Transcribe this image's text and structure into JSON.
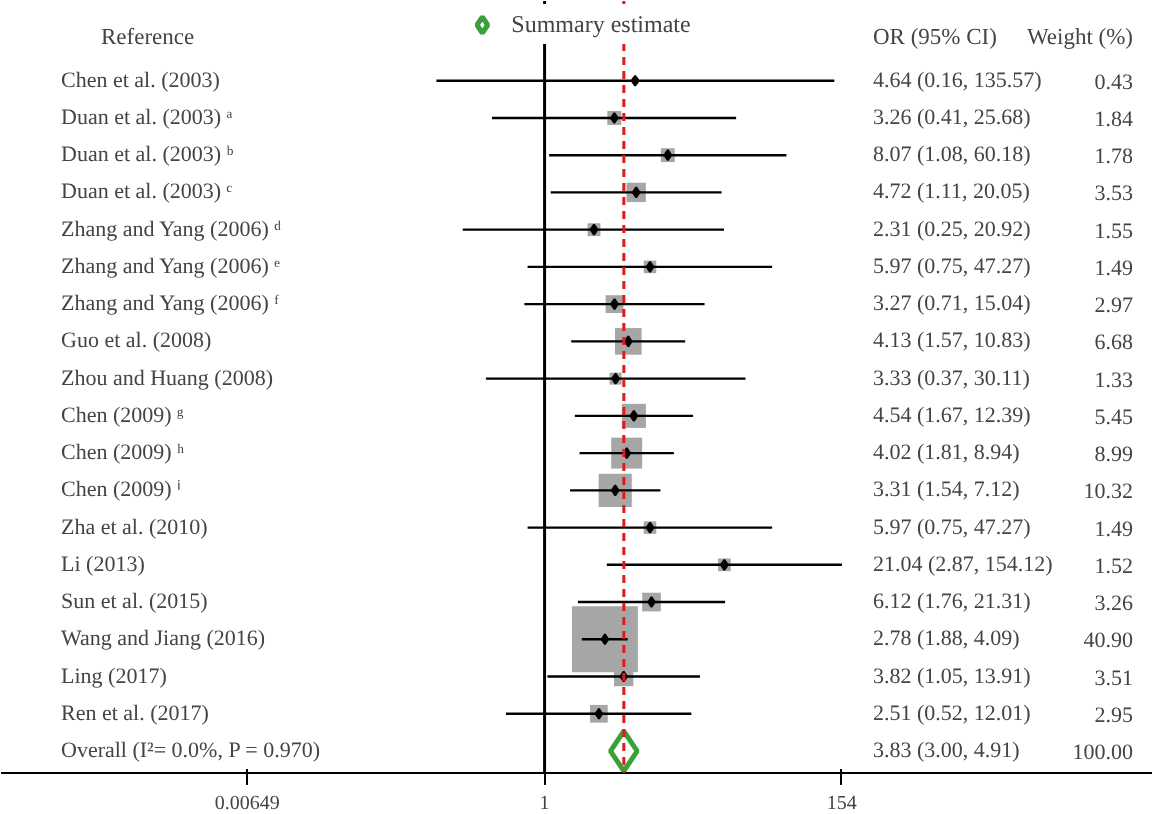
{
  "chart_data": {
    "type": "scatter",
    "orientation": "horizontal",
    "categories": [
      "Chen et al. (2003)",
      "Duan et al. (2003) ᵃ",
      "Duan et al. (2003) ᵇ",
      "Duan et al. (2003) ᶜ",
      "Zhang and Yang (2006) ᵈ",
      "Zhang and Yang (2006) ᵉ",
      "Zhang and Yang (2006) ᶠ",
      "Guo et al. (2008)",
      "Zhou and Huang (2008)",
      "Chen (2009) ᵍ",
      "Chen (2009) ʰ",
      "Chen (2009) ⁱ",
      "Zha et al. (2010)",
      "Li (2013)",
      "Sun et al. (2015)",
      "Wang and Jiang (2016)",
      "Ling (2017)",
      "Ren et al. (2017)",
      "Overall  (I²= 0.0%, P = 0.970)"
    ],
    "series": [
      {
        "color": "#a6a6a6",
        "marker": "square",
        "values": [
          4.64,
          3.26,
          8.07,
          4.72,
          2.31,
          5.97,
          3.27,
          4.13,
          3.33,
          4.54,
          4.02,
          3.31,
          5.97,
          21.04,
          6.12,
          2.78,
          3.82,
          2.51,
          null
        ],
        "errors": [
          [
            0.16,
            135.57
          ],
          [
            0.41,
            25.68
          ],
          [
            1.08,
            60.18
          ],
          [
            1.11,
            20.05
          ],
          [
            0.25,
            20.92
          ],
          [
            0.75,
            47.27
          ],
          [
            0.71,
            15.04
          ],
          [
            1.57,
            10.83
          ],
          [
            0.37,
            30.11
          ],
          [
            1.67,
            12.39
          ],
          [
            1.81,
            8.94
          ],
          [
            1.54,
            7.12
          ],
          [
            0.75,
            47.27
          ],
          [
            2.87,
            154.12
          ],
          [
            1.76,
            21.31
          ],
          [
            1.88,
            4.09
          ],
          [
            1.05,
            13.91
          ],
          [
            0.52,
            12.01
          ],
          null
        ],
        "sizes": [
          0.011,
          0.045,
          0.044,
          0.086,
          0.038,
          0.036,
          0.073,
          0.163,
          0.033,
          0.133,
          0.22,
          0.252,
          0.036,
          0.037,
          0.08,
          1,
          0.086,
          0.072,
          null
        ]
      },
      {
        "name": "Summary estimate",
        "color": "#3aa03a",
        "marker": "diamond",
        "values": [
          null,
          null,
          null,
          null,
          null,
          null,
          null,
          null,
          null,
          null,
          null,
          null,
          null,
          null,
          null,
          null,
          null,
          null,
          3.83
        ]
      }
    ],
    "value_labels": [
      "4.64 (0.16, 135.57)",
      "3.26 (0.41, 25.68)",
      "8.07 (1.08, 60.18)",
      "4.72 (1.11, 20.05)",
      "2.31 (0.25, 20.92)",
      "5.97 (0.75, 47.27)",
      "3.27 (0.71, 15.04)",
      "4.13 (1.57, 10.83)",
      "3.33 (0.37, 30.11)",
      "4.54 (1.67, 12.39)",
      "4.02 (1.81, 8.94)",
      "3.31 (1.54, 7.12)",
      "5.97 (0.75, 47.27)",
      "21.04 (2.87, 154.12)",
      "6.12 (1.76, 21.31)",
      "2.78 (1.88, 4.09)",
      "3.82 (1.05, 13.91)",
      "2.51 (0.52, 12.01)",
      "3.83 (3.00, 4.91)"
    ],
    "annotations": [
      "Reference",
      "OR (95% CI)",
      "Weight (%)",
      "0.43",
      "1.84",
      "1.78",
      "3.53",
      "1.55",
      "1.49",
      "2.97",
      "6.68",
      "1.33",
      "5.45",
      "8.99",
      "10.32",
      "1.49",
      "1.52",
      "3.26",
      "40.90",
      "3.51",
      "2.95",
      "100.00"
    ],
    "log": "x",
    "xlim": [
      0.0001,
      30000
    ],
    "xticks": [
      0.00649,
      1,
      154
    ],
    "ref_lines": [
      {
        "axis": "x",
        "value": 1,
        "color": "#000000",
        "line_style": "solid"
      },
      {
        "axis": "x",
        "value": 3.83,
        "color": "#e31a1c",
        "line_style": "dashed"
      }
    ],
    "legend": "top",
    "grid": false
  }
}
